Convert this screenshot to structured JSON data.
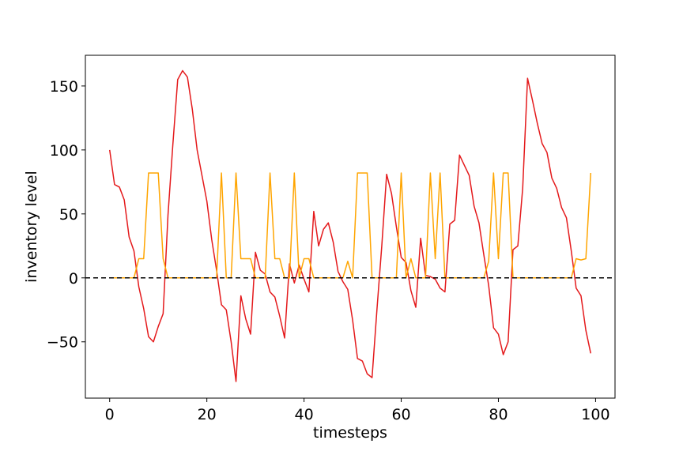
{
  "chart_data": {
    "type": "line",
    "title": "",
    "xlabel": "timesteps",
    "ylabel": "inventory level",
    "xlim": [
      -5,
      104
    ],
    "ylim": [
      -94,
      174
    ],
    "xticks": [
      0,
      20,
      40,
      60,
      80,
      100
    ],
    "yticks": [
      -50,
      0,
      50,
      100,
      150
    ],
    "ytick_labels": [
      "−50",
      "0",
      "50",
      "100",
      "150"
    ],
    "grid": false,
    "legend": "none",
    "reference_line": {
      "y": 0,
      "style": "dashed",
      "color": "#000000"
    },
    "series": [
      {
        "color": "#e41a1c",
        "x": [
          0,
          1,
          2,
          3,
          4,
          5,
          6,
          7,
          8,
          9,
          10,
          11,
          12,
          13,
          14,
          15,
          16,
          17,
          18,
          19,
          20,
          21,
          22,
          23,
          24,
          25,
          26,
          27,
          28,
          29,
          30,
          31,
          32,
          33,
          34,
          35,
          36,
          37,
          38,
          39,
          40,
          41,
          42,
          43,
          44,
          45,
          46,
          47,
          48,
          49,
          50,
          51,
          52,
          53,
          54,
          55,
          56,
          57,
          58,
          59,
          60,
          61,
          62,
          63,
          64,
          65,
          66,
          67,
          68,
          69,
          70,
          71,
          72,
          73,
          74,
          75,
          76,
          77,
          78,
          79,
          80,
          81,
          82,
          83,
          84,
          85,
          86,
          87,
          88,
          89,
          90,
          91,
          92,
          93,
          94,
          95,
          96,
          97,
          98,
          99
        ],
        "y": [
          100,
          73,
          71,
          61,
          32,
          21,
          -7,
          -24,
          -46,
          -50,
          -38,
          -28,
          49,
          104,
          155,
          162,
          157,
          132,
          100,
          80,
          60,
          30,
          6,
          -21,
          -25,
          -50,
          -81,
          -14,
          -32,
          -44,
          20,
          6,
          3,
          -11,
          -15,
          -30,
          -47,
          11,
          -4,
          10,
          -1,
          -11,
          52,
          25,
          38,
          43,
          28,
          5,
          -3,
          -9,
          -33,
          -63,
          -65,
          -75,
          -78,
          -25,
          25,
          81,
          66,
          40,
          16,
          12,
          -10,
          -23,
          31,
          2,
          1,
          -1,
          -8,
          -11,
          42,
          45,
          96,
          88,
          80,
          56,
          43,
          18,
          -6,
          -39,
          -44,
          -60,
          -50,
          22,
          25,
          70,
          156,
          139,
          121,
          105,
          98,
          78,
          70,
          55,
          47,
          21,
          -8,
          -14,
          -41,
          -59
        ]
      },
      {
        "color": "#ffa500",
        "x": [
          0,
          1,
          2,
          3,
          4,
          5,
          6,
          7,
          8,
          9,
          10,
          11,
          12,
          13,
          14,
          15,
          16,
          17,
          18,
          19,
          20,
          21,
          22,
          23,
          24,
          25,
          26,
          27,
          28,
          29,
          30,
          31,
          32,
          33,
          34,
          35,
          36,
          37,
          38,
          39,
          40,
          41,
          42,
          43,
          44,
          45,
          46,
          47,
          48,
          49,
          50,
          51,
          52,
          53,
          54,
          55,
          56,
          57,
          58,
          59,
          60,
          61,
          62,
          63,
          64,
          65,
          66,
          67,
          68,
          69,
          70,
          71,
          72,
          73,
          74,
          75,
          76,
          77,
          78,
          79,
          80,
          81,
          82,
          83,
          84,
          85,
          86,
          87,
          88,
          89,
          90,
          91,
          92,
          93,
          94,
          95,
          96,
          97,
          98,
          99
        ],
        "y": [
          0,
          0,
          0,
          0,
          0,
          0,
          15,
          15,
          82,
          82,
          82,
          15,
          0,
          0,
          0,
          0,
          0,
          0,
          0,
          0,
          0,
          0,
          0,
          82,
          0,
          0,
          82,
          15,
          15,
          15,
          0,
          0,
          0,
          82,
          15,
          15,
          0,
          0,
          82,
          0,
          15,
          15,
          0,
          0,
          0,
          0,
          0,
          0,
          0,
          13,
          0,
          82,
          82,
          82,
          0,
          0,
          0,
          0,
          0,
          0,
          82,
          0,
          15,
          0,
          0,
          0,
          82,
          15,
          82,
          0,
          0,
          0,
          0,
          0,
          0,
          0,
          0,
          0,
          13,
          82,
          15,
          82,
          82,
          0,
          0,
          0,
          0,
          0,
          0,
          0,
          0,
          0,
          0,
          0,
          0,
          0,
          15,
          14,
          15,
          82
        ]
      }
    ]
  }
}
